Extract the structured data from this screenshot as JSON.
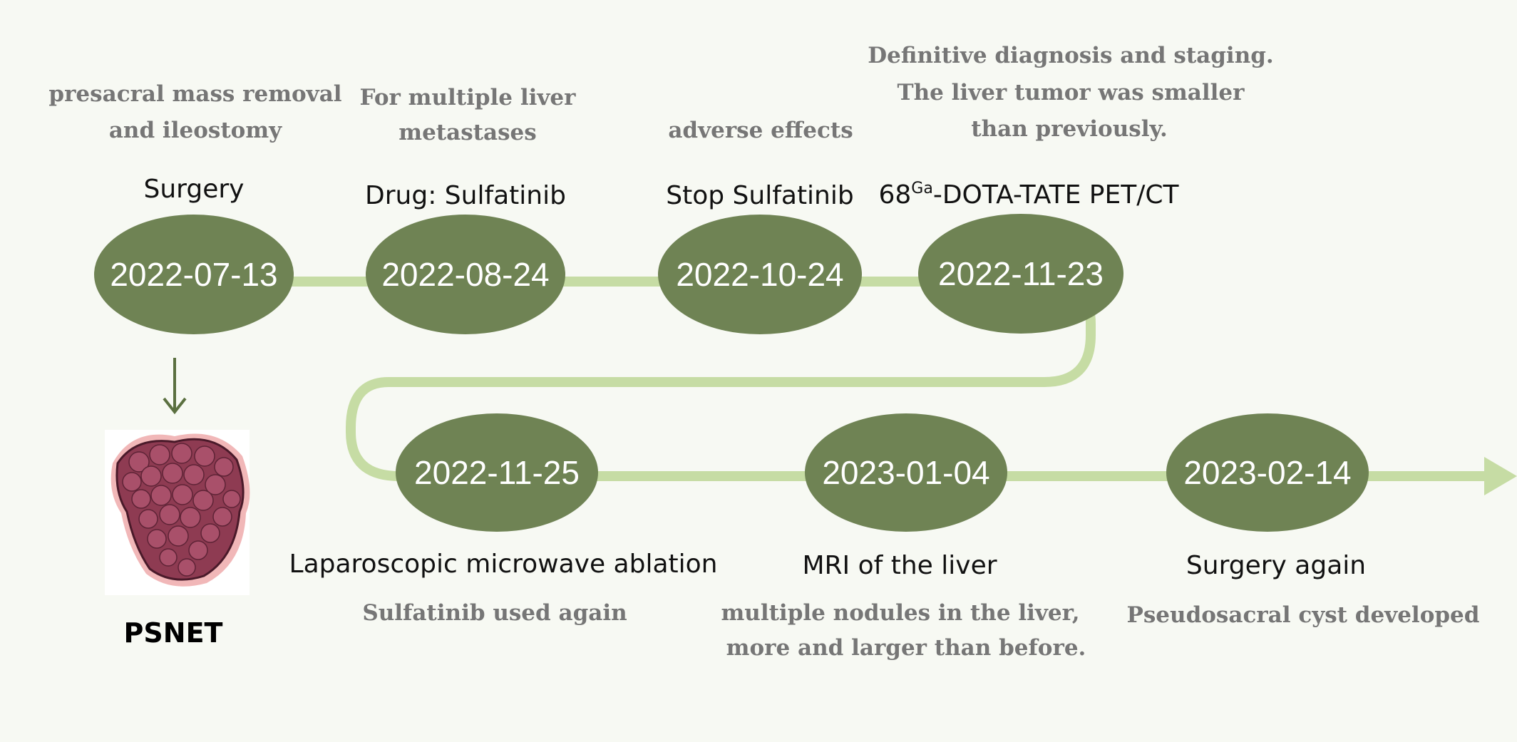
{
  "colors": {
    "background": "#f7f9f3",
    "node_fill": "#6f8354",
    "track": "#c6dca4",
    "note_text": "#767676",
    "event_text": "#111111",
    "tumor": "#8e3b52"
  },
  "events": [
    {
      "date": "2022-07-13",
      "label": "Surgery",
      "note": [
        "presacral mass removal",
        "and ileostomy"
      ]
    },
    {
      "date": "2022-08-24",
      "label": "Drug: Sulfatinib",
      "note": [
        "For multiple liver",
        "metastases"
      ]
    },
    {
      "date": "2022-10-24",
      "label": "Stop Sulfatinib",
      "note": [
        "adverse effects"
      ]
    },
    {
      "date": "2022-11-23",
      "label_prefix": "68",
      "label_sup": "Ga",
      "label_suffix": "-DOTA-TATE PET/CT",
      "note": [
        "Definitive diagnosis and staging.",
        "The liver tumor was smaller",
        "than previously."
      ]
    },
    {
      "date": "2022-11-25",
      "label": "Laparoscopic microwave ablation",
      "note": [
        "Sulfatinib used again"
      ]
    },
    {
      "date": "2023-01-04",
      "label": "MRI of the liver",
      "note": [
        "multiple nodules  in the liver,",
        "more and larger than before."
      ]
    },
    {
      "date": "2023-02-14",
      "label": "Surgery again",
      "note": [
        "Pseudosacral cyst developed"
      ]
    }
  ],
  "figure": {
    "caption": "PSNET",
    "icon": "tumor-illustration"
  }
}
